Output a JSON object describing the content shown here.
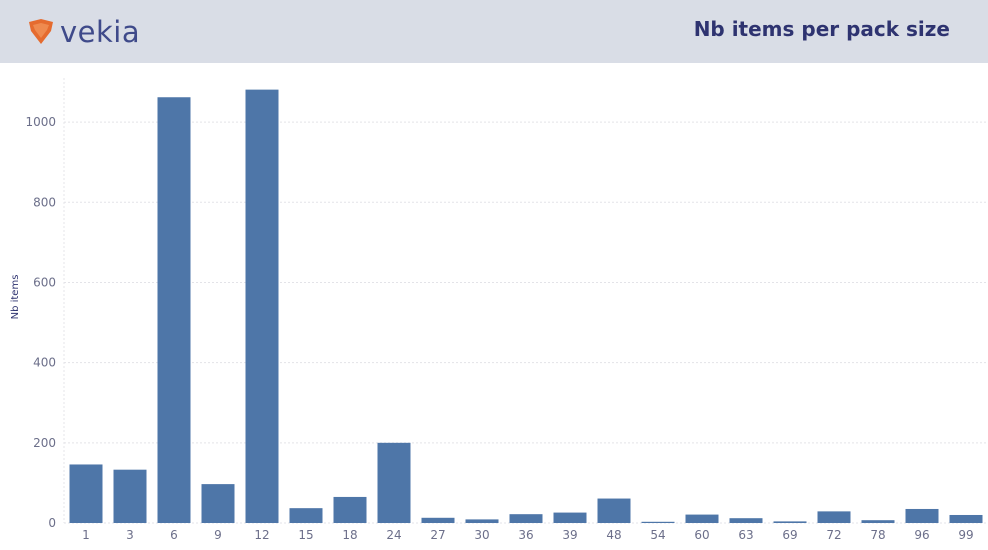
{
  "header": {
    "logo_text": "vekia",
    "title": "Nb items per pack size",
    "accent_color": "#e56b2f",
    "brand_color": "#3f4a8a",
    "background": "#d9dde6"
  },
  "chart_data": {
    "type": "bar",
    "categories": [
      "1",
      "3",
      "6",
      "9",
      "12",
      "15",
      "18",
      "24",
      "27",
      "30",
      "36",
      "39",
      "48",
      "54",
      "60",
      "63",
      "69",
      "72",
      "78",
      "96",
      "99"
    ],
    "values": [
      146,
      133,
      1062,
      97,
      1081,
      37,
      65,
      200,
      13,
      9,
      22,
      26,
      61,
      3,
      21,
      12,
      4,
      29,
      7,
      35,
      20
    ],
    "title": "Nb items per pack size",
    "xlabel": "",
    "ylabel": "Nb items",
    "ylim": [
      0,
      1110
    ],
    "yticks": [
      0,
      200,
      400,
      600,
      800,
      1000
    ],
    "bar_color": "#4e76a8",
    "grid": true
  }
}
